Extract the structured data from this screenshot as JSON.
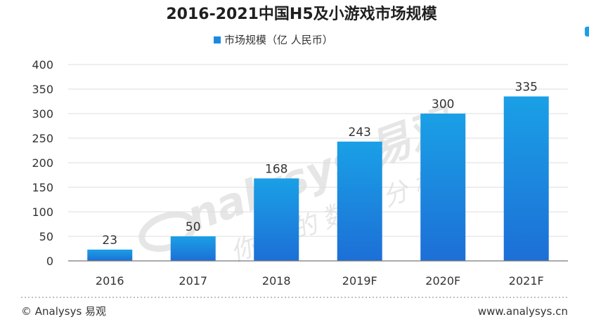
{
  "footer": {
    "copyright": "© Analysys 易观",
    "website": "www.analysys.cn"
  },
  "watermark": {
    "brand_text": "nalysys 易观",
    "slogan": "你要的数据分析"
  },
  "colors": {
    "bar_top": "#1aa0e6",
    "bar_bottom": "#1d6fd6",
    "legend_swatch": "#1a8ae0"
  },
  "chart_data": {
    "type": "bar",
    "title": "2016-2021中国H5及小游戏市场规模",
    "categories": [
      "2016",
      "2017",
      "2018",
      "2019F",
      "2020F",
      "2021F"
    ],
    "series": [
      {
        "name": "市场规模（亿 人民币）",
        "values": [
          23,
          50,
          168,
          243,
          300,
          335
        ]
      }
    ],
    "ylim": [
      0,
      400
    ],
    "yticks": [
      0,
      50,
      100,
      150,
      200,
      250,
      300,
      350,
      400
    ],
    "grid": true,
    "legend_position": "top-center",
    "xlabel": "",
    "ylabel": ""
  }
}
